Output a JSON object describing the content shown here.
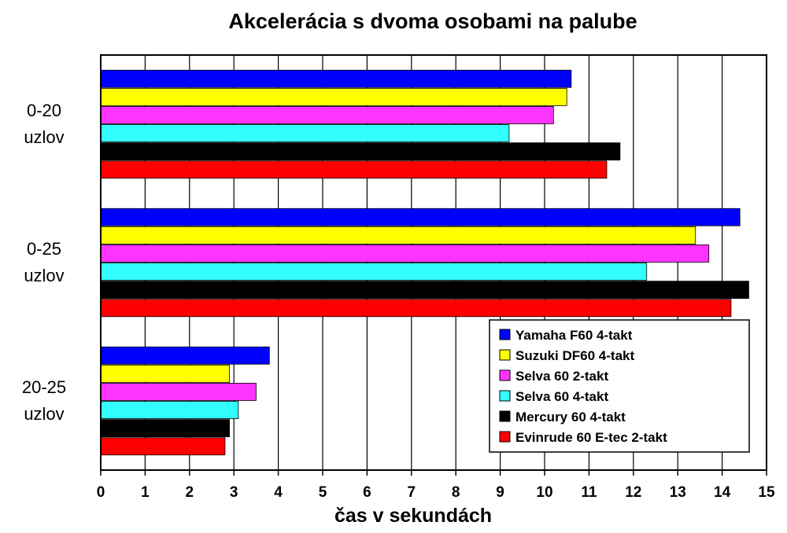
{
  "chart_data": {
    "type": "bar",
    "orientation": "horizontal",
    "title": "Akcelerácia s dvoma osobami na palube",
    "xlabel": "čas v sekundách",
    "ylabel": "",
    "xlim": [
      0,
      15
    ],
    "grid": true,
    "legend_position": "bottom-right",
    "xticks": [
      "0",
      "1",
      "2",
      "3",
      "4",
      "5",
      "6",
      "7",
      "8",
      "9",
      "10",
      "11",
      "12",
      "13",
      "14",
      "15"
    ],
    "categories": [
      {
        "line1": "0-20",
        "line2": "uzlov"
      },
      {
        "line1": "0-25",
        "line2": "uzlov"
      },
      {
        "line1": "20-25",
        "line2": "uzlov"
      }
    ],
    "series": [
      {
        "name": "Yamaha F60 4-takt",
        "color": "#0000ff",
        "values": [
          10.6,
          14.4,
          3.8
        ]
      },
      {
        "name": "Suzuki DF60 4-takt",
        "color": "#ffff00",
        "values": [
          10.5,
          13.4,
          2.9
        ]
      },
      {
        "name": "Selva 60 2-takt",
        "color": "#ff33ff",
        "values": [
          10.2,
          13.7,
          3.5
        ]
      },
      {
        "name": "Selva 60 4-takt",
        "color": "#33ffff",
        "values": [
          9.2,
          12.3,
          3.1
        ]
      },
      {
        "name": "Mercury 60 4-takt",
        "color": "#000000",
        "values": [
          11.7,
          14.6,
          2.9
        ]
      },
      {
        "name": "Evinrude 60 E-tec 2-takt",
        "color": "#ff0000",
        "values": [
          11.4,
          14.2,
          2.8
        ]
      }
    ]
  }
}
